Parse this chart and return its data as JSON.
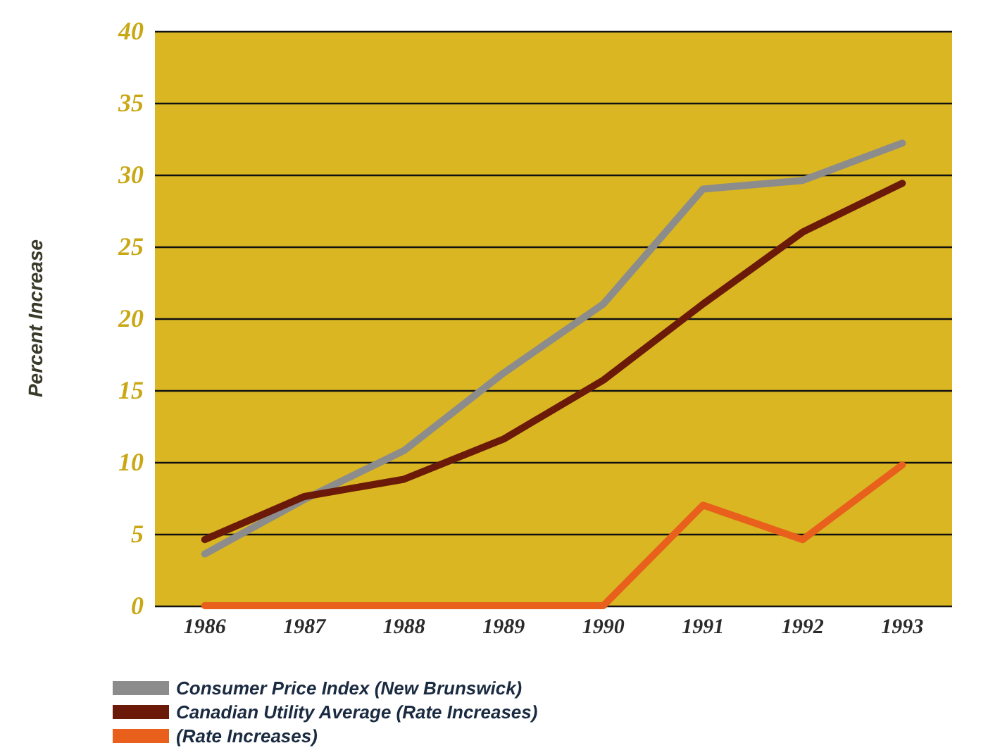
{
  "chart_data": {
    "type": "line",
    "ylabel": "Percent Increase",
    "categories": [
      "1986",
      "1987",
      "1988",
      "1989",
      "1990",
      "1991",
      "1992",
      "1993"
    ],
    "series": [
      {
        "name": "Consumer Price Index (New Brunswick)",
        "color": "#8c8c8c",
        "values": [
          3.6,
          7.4,
          10.8,
          16.2,
          21,
          29,
          29.6,
          32.2
        ]
      },
      {
        "name": "Canadian Utility Average (Rate Increases)",
        "color": "#6b1a0a",
        "values": [
          4.6,
          7.6,
          8.8,
          11.6,
          15.7,
          21,
          26,
          29.4
        ]
      },
      {
        "name": "(Rate Increases)",
        "color": "#e8601c",
        "values": [
          0,
          0,
          0,
          0,
          0,
          7,
          4.6,
          9.8
        ]
      }
    ],
    "ylim": [
      0,
      40
    ],
    "yticks": [
      0,
      5,
      10,
      15,
      20,
      25,
      30,
      35,
      40
    ],
    "grid": "y",
    "legend": "bottom left",
    "marker": "none",
    "line_style": "solid"
  }
}
